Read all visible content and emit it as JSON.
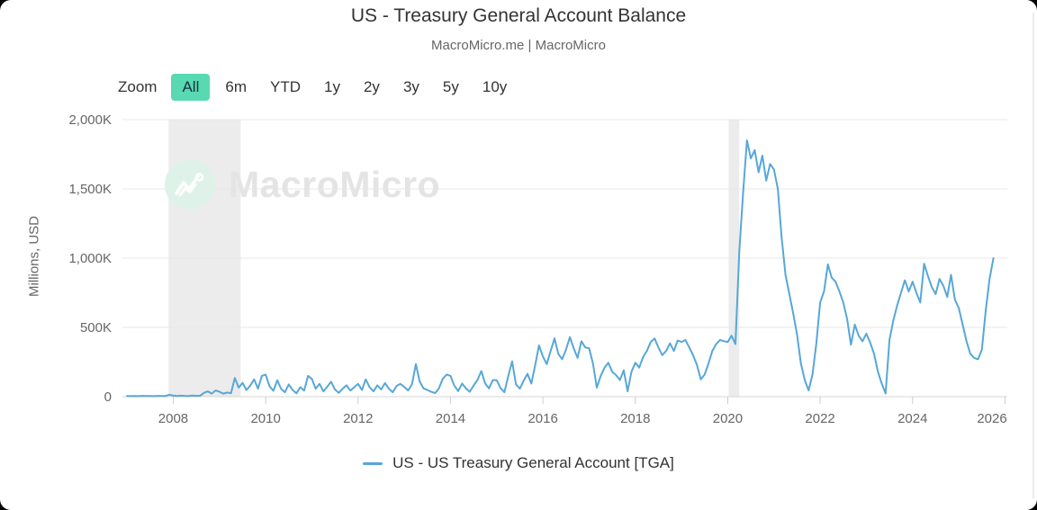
{
  "header": {
    "title": "US - Treasury General Account Balance",
    "subtitle": "MacroMicro.me | MacroMicro"
  },
  "toolbar": {
    "zoom_label": "Zoom",
    "ranges": [
      "All",
      "6m",
      "YTD",
      "1y",
      "2y",
      "3y",
      "5y",
      "10y"
    ],
    "active": "All",
    "active_bg": "#58d9b2"
  },
  "watermark": {
    "text": "MacroMicro",
    "circle_color": "#dff2ea"
  },
  "legend": {
    "label": "US - US Treasury General Account [TGA]"
  },
  "chart_data": {
    "type": "line",
    "title": "US - Treasury General Account Balance",
    "subtitle": "MacroMicro.me | MacroMicro",
    "ylabel": "Millions, USD",
    "xlabel": "",
    "xlim": [
      2006.9,
      2026.05
    ],
    "ylim": [
      0,
      2000
    ],
    "grid": "horizontal",
    "legend_position": "bottom-center",
    "y_ticks": [
      {
        "value": 0,
        "label": "0"
      },
      {
        "value": 500,
        "label": "500K"
      },
      {
        "value": 1000,
        "label": "1,000K"
      },
      {
        "value": 1500,
        "label": "1,500K"
      },
      {
        "value": 2000,
        "label": "2,000K"
      }
    ],
    "x_ticks": [
      2008,
      2010,
      2012,
      2014,
      2016,
      2018,
      2020,
      2022,
      2024,
      2026
    ],
    "band_color": "#ececec",
    "recession_bands": [
      {
        "from": 2007.9,
        "to": 2009.46
      },
      {
        "from": 2020.02,
        "to": 2020.25
      }
    ],
    "series": [
      {
        "name": "US - US Treasury General Account [TGA]",
        "color": "#57a7d8",
        "line_width": 2,
        "start_year": 2007,
        "frequency": "monthly",
        "values_by_year": {
          "2007": [
            5,
            4,
            5,
            4,
            6,
            5,
            5,
            4,
            6,
            5,
            5,
            14
          ],
          "2008": [
            8,
            5,
            7,
            6,
            5,
            8,
            6,
            7,
            28,
            38,
            22,
            45
          ],
          "2009": [
            35,
            22,
            30,
            25,
            135,
            65,
            100,
            48,
            80,
            125,
            58,
            150
          ],
          "2010": [
            160,
            75,
            42,
            118,
            58,
            32,
            88,
            48,
            24,
            68,
            44,
            150
          ],
          "2011": [
            128,
            58,
            92,
            38,
            72,
            108,
            52,
            28,
            58,
            82,
            44,
            68
          ],
          "2012": [
            92,
            48,
            125,
            68,
            38,
            82,
            52,
            98,
            58,
            32,
            78,
            92
          ],
          "2013": [
            70,
            45,
            90,
            235,
            110,
            60,
            48,
            35,
            25,
            60,
            130,
            160
          ],
          "2014": [
            150,
            80,
            40,
            95,
            60,
            35,
            80,
            120,
            185,
            95,
            60,
            120
          ],
          "2015": [
            118,
            62,
            32,
            148,
            255,
            88,
            58,
            115,
            165,
            95,
            230,
            370
          ],
          "2016": [
            290,
            235,
            330,
            420,
            310,
            270,
            340,
            430,
            350,
            280,
            400,
            355
          ],
          "2017": [
            350,
            240,
            65,
            150,
            210,
            245,
            180,
            155,
            120,
            190,
            38,
            180
          ],
          "2018": [
            245,
            210,
            285,
            330,
            395,
            420,
            355,
            300,
            330,
            385,
            330,
            405
          ],
          "2019": [
            395,
            410,
            355,
            300,
            230,
            125,
            160,
            240,
            330,
            380,
            410,
            400
          ],
          "2020": [
            395,
            440,
            380,
            1050,
            1480,
            1850,
            1720,
            1780,
            1620,
            1740,
            1560,
            1680
          ],
          "2021": [
            1640,
            1500,
            1150,
            880,
            740,
            600,
            450,
            240,
            120,
            45,
            160,
            380
          ],
          "2022": [
            680,
            760,
            955,
            860,
            830,
            760,
            680,
            560,
            375,
            520,
            440,
            400
          ],
          "2023": [
            455,
            390,
            310,
            180,
            95,
            23,
            410,
            550,
            660,
            750,
            840,
            760
          ],
          "2024": [
            830,
            750,
            680,
            960,
            870,
            790,
            740,
            850,
            800,
            720,
            880,
            700
          ],
          "2025": [
            640,
            520,
            400,
            310,
            280,
            270,
            340,
            620,
            850,
            1000
          ]
        }
      }
    ]
  }
}
